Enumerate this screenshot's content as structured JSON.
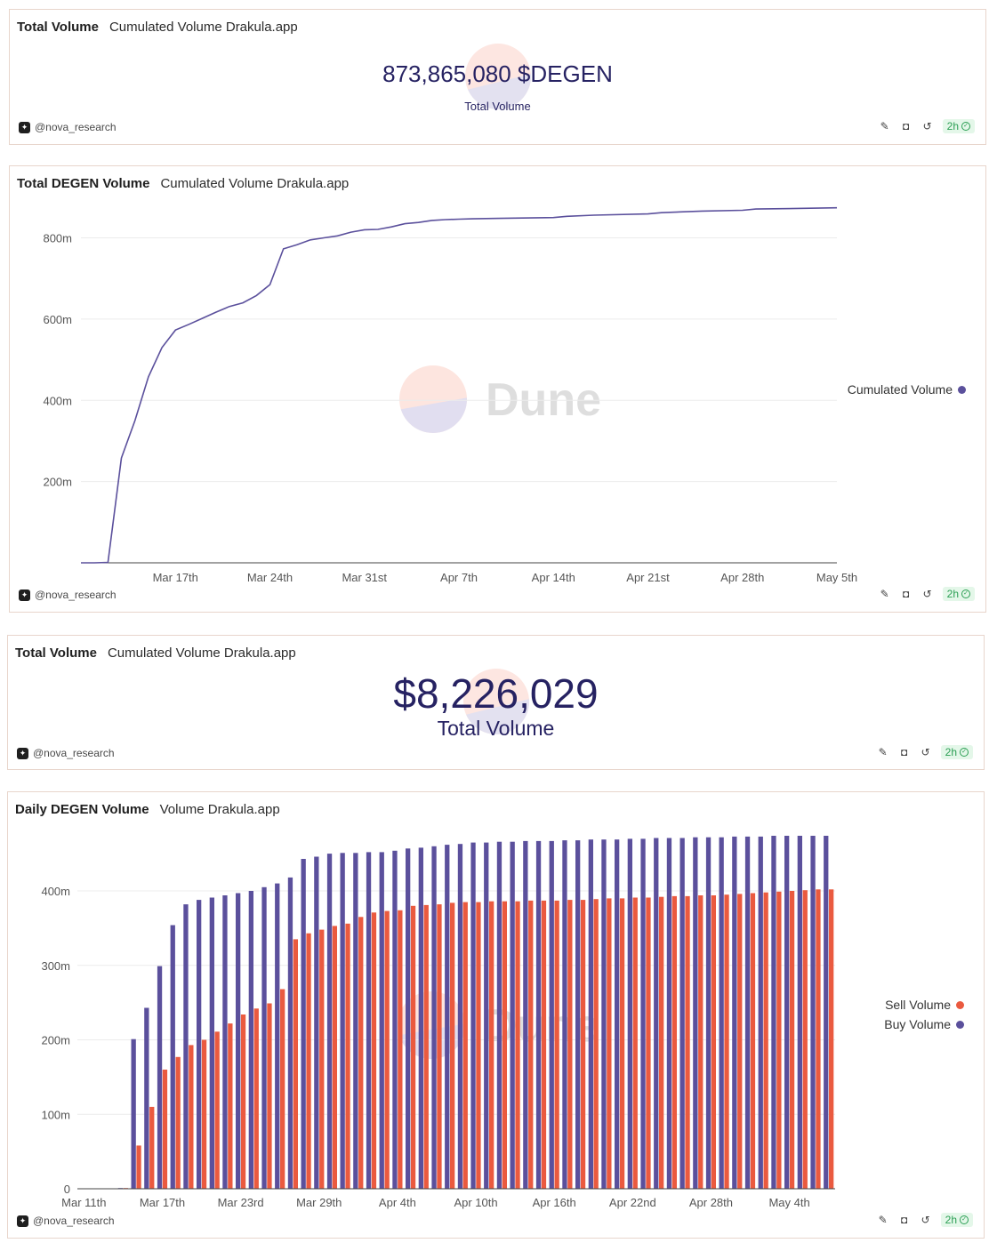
{
  "colors": {
    "buy": "#5b509c",
    "sell": "#ea5a3f",
    "counter_text": "#262262",
    "badge_bg": "#e4f7e9",
    "badge_text": "#2c9f54",
    "panel_border": "#e8d5cc"
  },
  "author": "@nova_research",
  "refresh_badge": "2h",
  "toolbar_icons": [
    "pencil-icon",
    "camera-icon",
    "refresh-icon",
    "check-circle-icon"
  ],
  "watermark": "Dune",
  "panel1": {
    "title": "Total Volume",
    "subtitle": "Cumulated Volume Drakula.app",
    "value": "873,865,080 $DEGEN",
    "label": "Total Volume"
  },
  "panel2": {
    "title": "Total DEGEN Volume",
    "subtitle": "Cumulated Volume Drakula.app"
  },
  "panel3": {
    "title": "Total Volume",
    "subtitle": "Cumulated Volume Drakula.app",
    "value": "$8,226,029",
    "label": "Total Volume"
  },
  "panel4": {
    "title": "Daily DEGEN Volume",
    "subtitle": "Volume Drakula.app"
  },
  "chart_data": [
    {
      "type": "line",
      "title": "Total DEGEN Volume",
      "legend_position": "right",
      "grid": true,
      "ylim": [
        0,
        880000000
      ],
      "yticks": [
        200000000,
        400000000,
        600000000,
        800000000
      ],
      "ytick_labels": [
        "200m",
        "400m",
        "600m",
        "800m"
      ],
      "xlim": [
        "2024-03-10",
        "2024-05-05"
      ],
      "xticks": [
        "2024-03-17",
        "2024-03-24",
        "2024-03-31",
        "2024-04-07",
        "2024-04-14",
        "2024-04-21",
        "2024-04-28",
        "2024-05-05"
      ],
      "xtick_labels": [
        "Mar 17th",
        "Mar 24th",
        "Mar 31st",
        "Apr 7th",
        "Apr 14th",
        "Apr 21st",
        "Apr 28th",
        "May 5th"
      ],
      "series": [
        {
          "name": "Cumulated Volume",
          "color": "#5b509c",
          "x": [
            "2024-03-10",
            "2024-03-11",
            "2024-03-12",
            "2024-03-13",
            "2024-03-14",
            "2024-03-15",
            "2024-03-16",
            "2024-03-17",
            "2024-03-18",
            "2024-03-19",
            "2024-03-20",
            "2024-03-21",
            "2024-03-22",
            "2024-03-23",
            "2024-03-24",
            "2024-03-25",
            "2024-03-26",
            "2024-03-27",
            "2024-03-28",
            "2024-03-29",
            "2024-03-30",
            "2024-03-31",
            "2024-04-01",
            "2024-04-02",
            "2024-04-03",
            "2024-04-04",
            "2024-04-05",
            "2024-04-06",
            "2024-04-07",
            "2024-04-08",
            "2024-04-10",
            "2024-04-14",
            "2024-04-15",
            "2024-04-17",
            "2024-04-21",
            "2024-04-22",
            "2024-04-25",
            "2024-04-28",
            "2024-04-29",
            "2024-05-01",
            "2024-05-05"
          ],
          "y": [
            0,
            0,
            1000000,
            258000000,
            350000000,
            458000000,
            530000000,
            573000000,
            587000000,
            602000000,
            617000000,
            631000000,
            640000000,
            658000000,
            685000000,
            773000000,
            783000000,
            795000000,
            800000000,
            805000000,
            814000000,
            820000000,
            821000000,
            827000000,
            835000000,
            838000000,
            843000000,
            845000000,
            846000000,
            847000000,
            848000000,
            850000000,
            853000000,
            856000000,
            859000000,
            862000000,
            866000000,
            868000000,
            871000000,
            872000000,
            874000000
          ]
        }
      ]
    },
    {
      "type": "bar",
      "title": "Daily DEGEN Volume",
      "legend_position": "right",
      "grid": true,
      "ylim": [
        0,
        480000000
      ],
      "yticks": [
        0,
        100000000,
        200000000,
        300000000,
        400000000
      ],
      "ytick_labels": [
        "0",
        "100m",
        "200m",
        "300m",
        "400m"
      ],
      "xtick_labels": [
        "Mar 11th",
        "Mar 17th",
        "Mar 23rd",
        "Mar 29th",
        "Apr 4th",
        "Apr 10th",
        "Apr 16th",
        "Apr 22nd",
        "Apr 28th",
        "May 4th"
      ],
      "xtick_indices": [
        0,
        6,
        12,
        18,
        24,
        30,
        36,
        42,
        48,
        54
      ],
      "series": [
        {
          "name": "Sell Volume",
          "color": "#ea5a3f",
          "values": [
            0,
            0,
            0,
            1000000,
            58000000,
            110000000,
            160000000,
            177000000,
            193000000,
            200000000,
            211000000,
            222000000,
            234000000,
            242000000,
            249000000,
            268000000,
            335000000,
            343000000,
            348000000,
            353000000,
            356000000,
            365000000,
            371000000,
            373000000,
            374000000,
            380000000,
            381000000,
            382000000,
            384000000,
            385000000,
            385000000,
            386000000,
            386000000,
            386000000,
            387000000,
            387000000,
            387000000,
            388000000,
            388000000,
            389000000,
            390000000,
            390000000,
            391000000,
            391000000,
            392000000,
            393000000,
            393000000,
            394000000,
            394000000,
            395000000,
            396000000,
            397000000,
            398000000,
            399000000,
            400000000,
            401000000,
            402000000,
            402000000
          ]
        },
        {
          "name": "Buy Volume",
          "color": "#5b509c",
          "values": [
            0,
            0,
            0,
            0,
            0,
            0,
            0,
            0,
            0,
            0,
            0,
            0,
            0,
            0,
            0,
            0,
            0,
            0,
            0,
            0,
            0,
            0,
            0,
            0,
            0,
            0,
            0,
            0,
            0,
            0,
            0,
            0,
            0,
            0,
            0,
            0,
            0,
            0,
            0,
            0,
            0,
            0,
            0,
            0,
            0,
            0,
            0,
            0,
            0,
            0,
            0,
            0,
            0,
            0,
            0,
            0,
            0,
            0
          ],
          "totals": [
            0,
            0,
            0,
            1000000,
            201000000,
            243000000,
            299000000,
            354000000,
            382000000,
            388000000,
            391000000,
            394000000,
            397000000,
            400000000,
            405000000,
            410000000,
            418000000,
            443000000,
            446000000,
            450000000,
            451000000,
            451000000,
            452000000,
            452000000,
            454000000,
            457000000,
            458000000,
            460000000,
            462000000,
            463000000,
            465000000,
            465000000,
            466000000,
            466000000,
            467000000,
            467000000,
            467000000,
            468000000,
            468000000,
            469000000,
            469000000,
            469000000,
            470000000,
            470000000,
            471000000,
            471000000,
            471000000,
            472000000,
            472000000,
            472000000,
            473000000,
            473000000,
            473000000,
            474000000,
            474000000,
            474000000,
            474000000,
            474000000
          ]
        }
      ]
    }
  ]
}
